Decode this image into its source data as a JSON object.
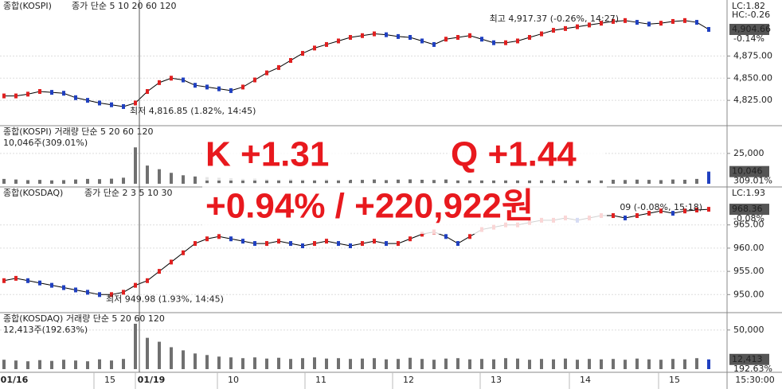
{
  "chart_data": [
    {
      "type": "line",
      "title": "종합(KOSPI)",
      "subtitle": "종가 단순 5 10 20 60 120",
      "annotations": [
        "최고 4,917.37 (-0.26%, 14:27)",
        "최저 4,816.85 (1.82%, 14:45)"
      ],
      "corner_labels": [
        "LC:1.82",
        "HC:-0.26"
      ],
      "last_label": "4,904.66",
      "last_change": "-0.14%",
      "color": "#000000",
      "up_color": "#e02020",
      "down_color": "#2040c0",
      "ylim": [
        4800,
        4931
      ],
      "yticks": [
        {
          "value": 4825,
          "label": "4,825.00"
        },
        {
          "value": 4850,
          "label": "4,850.00"
        },
        {
          "value": 4875,
          "label": "4,875.00"
        }
      ],
      "values": [
        4830,
        4830,
        4832,
        4835,
        4834,
        4833,
        4828,
        4825,
        4822,
        4820,
        4818,
        4822,
        4835,
        4845,
        4850,
        4848,
        4842,
        4840,
        4838,
        4836,
        4840,
        4848,
        4856,
        4862,
        4870,
        4878,
        4884,
        4888,
        4892,
        4896,
        4898,
        4900,
        4899,
        4897,
        4896,
        4892,
        4888,
        4894,
        4896,
        4898,
        4894,
        4890,
        4890,
        4892,
        4896,
        4900,
        4904,
        4906,
        4908,
        4910,
        4912,
        4914,
        4915,
        4913,
        4911,
        4912,
        4914,
        4915,
        4913,
        4905
      ]
    },
    {
      "type": "bar",
      "title": "종합(KOSPI) 거래량 단순 5 20 60 120",
      "subtitle": "10,046주(309.01%)",
      "last_label": "10,046",
      "last_change": "309.01%",
      "color": "#707070",
      "ylim": [
        0,
        40000
      ],
      "yticks": [
        {
          "value": 25000,
          "label": "25,000"
        }
      ],
      "values": [
        4000,
        3500,
        3000,
        3200,
        2800,
        3000,
        3500,
        4000,
        3800,
        4200,
        5000,
        30000,
        15000,
        12000,
        9000,
        7000,
        6000,
        5500,
        5000,
        4500,
        4000,
        4200,
        3800,
        3500,
        4000,
        3600,
        3400,
        3800,
        3500,
        3300,
        3200,
        3500,
        3000,
        3400,
        3600,
        3300,
        3100,
        3500,
        3200,
        3000,
        3300,
        3100,
        3400,
        3200,
        3000,
        3300,
        3500,
        3100,
        3400,
        3200,
        3000,
        3300,
        3100,
        3400,
        3200,
        3000,
        3500,
        3300,
        4000,
        10046
      ]
    },
    {
      "type": "line",
      "title": "종합(KOSDAQ)",
      "subtitle": "종가 단순 2 3 5 10 30",
      "annotations": [
        "09 (-0.08%, 15:18)",
        "최저 949.98 (1.93%, 14:45)"
      ],
      "corner_labels": [
        "LC:1.93"
      ],
      "last_label": "968.36",
      "last_change": "-0.08%",
      "color": "#000000",
      "up_color": "#e02020",
      "down_color": "#2040c0",
      "ylim": [
        946.8,
        971.8
      ],
      "yticks": [
        {
          "value": 950,
          "label": "950.00"
        },
        {
          "value": 955,
          "label": "955.00"
        },
        {
          "value": 960,
          "label": "960.00"
        },
        {
          "value": 965,
          "label": "965.00"
        }
      ],
      "values": [
        953,
        953.5,
        953,
        952.5,
        952,
        951.5,
        951,
        950.5,
        950,
        950,
        950.5,
        952,
        953,
        955,
        957,
        959,
        961,
        962,
        962.5,
        962,
        961.5,
        961,
        961,
        961.5,
        961,
        960.5,
        961,
        961.5,
        961,
        960.5,
        961,
        961.5,
        961,
        961,
        962,
        963,
        963.5,
        962.5,
        961,
        962.5,
        964,
        964.5,
        965,
        965,
        965.5,
        966,
        966,
        966.5,
        966,
        966.5,
        967,
        967,
        966.5,
        967,
        967.5,
        968,
        967.5,
        968,
        968.2,
        968.36
      ]
    },
    {
      "type": "bar",
      "title": "종합(KOSDAQ) 거래량 단순 5 20 60 120",
      "subtitle": "12,413주(192.63%)",
      "last_label": "12,413",
      "last_change": "192.63%",
      "color": "#707070",
      "ylim": [
        0,
        60000
      ],
      "yticks": [
        {
          "value": 50000,
          "label": "50,000"
        }
      ],
      "values": [
        12000,
        11000,
        10000,
        11500,
        10500,
        12000,
        11000,
        10000,
        12500,
        11000,
        13000,
        58000,
        40000,
        35000,
        28000,
        24000,
        20000,
        18000,
        16000,
        15000,
        14000,
        15000,
        13500,
        14500,
        13000,
        14000,
        15000,
        13500,
        14000,
        13000,
        13500,
        14000,
        12500,
        13000,
        14500,
        13000,
        12000,
        13500,
        14000,
        12500,
        13000,
        12500,
        14000,
        13500,
        12000,
        13000,
        12500,
        13500,
        12000,
        13000,
        12500,
        13000,
        12000,
        13500,
        12500,
        12000,
        13000,
        12500,
        14000,
        12413
      ]
    }
  ],
  "time_axis": {
    "labels": [
      "01/16",
      "15",
      "01/19",
      "10",
      "11",
      "12",
      "13",
      "14",
      "15"
    ],
    "current": "15:30:00"
  },
  "overlay": {
    "kospi": "K +1.31",
    "kosdaq": "Q +1.44",
    "total": "+0.94% / +220,922원"
  }
}
